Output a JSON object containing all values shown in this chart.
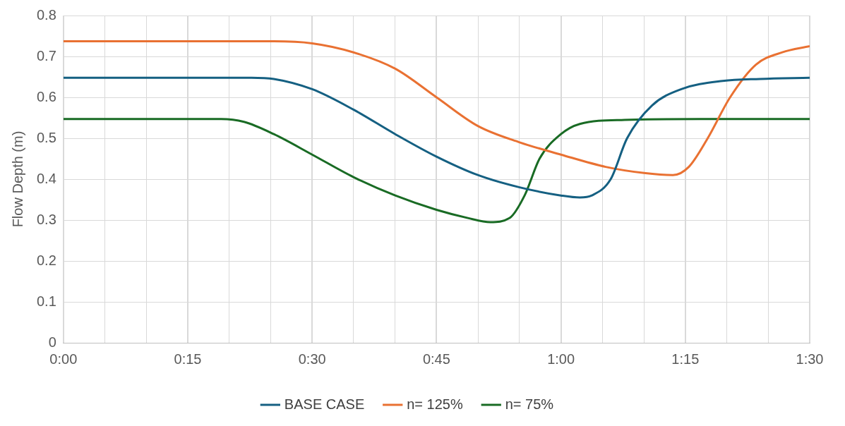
{
  "chart_data": {
    "type": "line",
    "ylabel": "Flow Depth (m)",
    "xlim": [
      0,
      1.5
    ],
    "xticks": [
      {
        "value": 0,
        "label": "0:00"
      },
      {
        "value": 0.0833,
        "label": null
      },
      {
        "value": 0.1667,
        "label": null
      },
      {
        "value": 0.25,
        "label": "0:15"
      },
      {
        "value": 0.3333,
        "label": null
      },
      {
        "value": 0.4167,
        "label": null
      },
      {
        "value": 0.5,
        "label": "0:30"
      },
      {
        "value": 0.5833,
        "label": null
      },
      {
        "value": 0.6667,
        "label": null
      },
      {
        "value": 0.75,
        "label": "0:45"
      },
      {
        "value": 0.8333,
        "label": null
      },
      {
        "value": 0.9167,
        "label": null
      },
      {
        "value": 1,
        "label": "1:00"
      },
      {
        "value": 1.0833,
        "label": null
      },
      {
        "value": 1.1667,
        "label": null
      },
      {
        "value": 1.25,
        "label": "1:15"
      },
      {
        "value": 1.3333,
        "label": null
      },
      {
        "value": 1.4167,
        "label": null
      },
      {
        "value": 1.5,
        "label": "1:30"
      }
    ],
    "ylim": [
      0,
      0.8
    ],
    "yticks": [
      0,
      0.1,
      0.2,
      0.3,
      0.4,
      0.5,
      0.6,
      0.7,
      0.8
    ],
    "grid": true,
    "legend": "bottom",
    "marker": "none",
    "line_style": "solid",
    "series": [
      {
        "name": "BASE CASE",
        "color": "#156082",
        "x": [
          0,
          0.378,
          0.423,
          0.5,
          0.583,
          0.667,
          0.75,
          0.833,
          0.917,
          1,
          1.038,
          1.062,
          1.1,
          1.133,
          1.183,
          1.242,
          1.325,
          1.4,
          1.5
        ],
        "values": [
          0.648,
          0.648,
          0.645,
          0.62,
          0.57,
          0.51,
          0.455,
          0.41,
          0.38,
          0.36,
          0.355,
          0.36,
          0.4,
          0.5,
          0.58,
          0.62,
          0.64,
          0.645,
          0.648
        ]
      },
      {
        "name": "n= 125%",
        "color": "#e97132",
        "x": [
          0,
          0.423,
          0.5,
          0.583,
          0.667,
          0.75,
          0.833,
          0.917,
          1,
          1.09,
          1.167,
          1.225,
          1.257,
          1.295,
          1.34,
          1.392,
          1.445,
          1.5
        ],
        "values": [
          0.737,
          0.737,
          0.732,
          0.71,
          0.67,
          0.6,
          0.53,
          0.49,
          0.46,
          0.43,
          0.415,
          0.41,
          0.43,
          0.5,
          0.6,
          0.68,
          0.71,
          0.725
        ]
      },
      {
        "name": "n= 75%",
        "color": "#196b24",
        "x": [
          0,
          0.317,
          0.363,
          0.423,
          0.5,
          0.583,
          0.667,
          0.75,
          0.813,
          0.858,
          0.897,
          0.927,
          0.957,
          1,
          1.038,
          1.128,
          1.28,
          1.5
        ],
        "values": [
          0.547,
          0.547,
          0.54,
          0.51,
          0.46,
          0.405,
          0.36,
          0.325,
          0.305,
          0.295,
          0.305,
          0.36,
          0.45,
          0.51,
          0.535,
          0.545,
          0.547,
          0.547
        ]
      }
    ]
  }
}
